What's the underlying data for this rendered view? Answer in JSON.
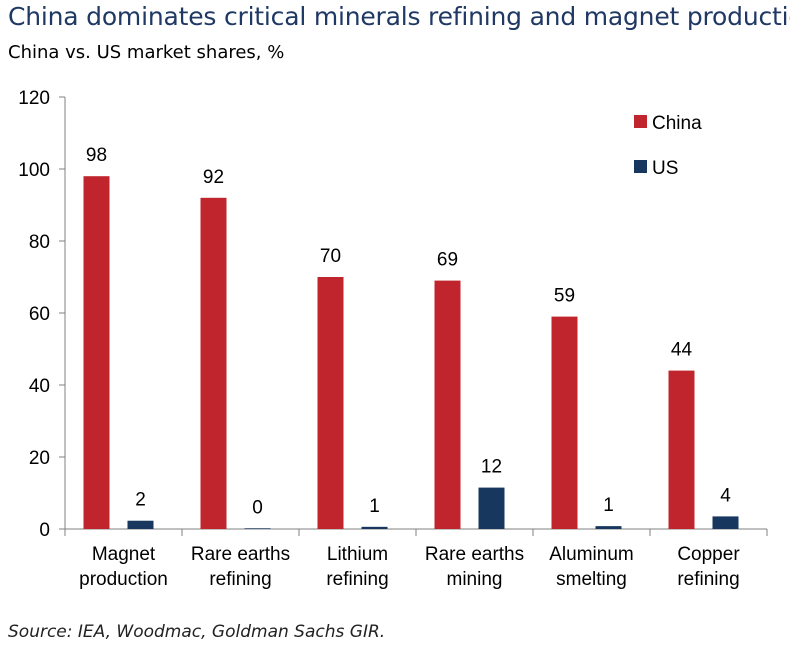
{
  "chart_data": {
    "type": "bar",
    "title": "China dominates critical minerals refining and magnet production",
    "subtitle": "China vs. US market shares, %",
    "source": "Source: IEA, Woodmac, Goldman Sachs GIR.",
    "categories": [
      [
        "Magnet",
        "production"
      ],
      [
        "Rare earths",
        "refining"
      ],
      [
        "Lithium",
        "refining"
      ],
      [
        "Rare earths",
        "mining"
      ],
      [
        "Aluminum",
        "smelting"
      ],
      [
        "Copper",
        "refining"
      ]
    ],
    "series": [
      {
        "name": "China",
        "color": "#c0242c",
        "values": [
          98,
          92,
          70,
          69,
          59,
          44
        ]
      },
      {
        "name": "US",
        "color": "#17375e",
        "values": [
          2.3,
          0.2,
          0.6,
          11.5,
          0.8,
          3.5
        ],
        "labels": [
          "2",
          "0",
          "1",
          "12",
          "1",
          "4"
        ]
      }
    ],
    "data_labels_china": [
      "98",
      "92",
      "70",
      "69",
      "59",
      "44"
    ],
    "ylim": [
      0,
      120
    ],
    "yticks": [
      "0",
      "20",
      "40",
      "60",
      "80",
      "100",
      "120"
    ],
    "ytick_values": [
      0,
      20,
      40,
      60,
      80,
      100,
      120
    ],
    "legend_position": "top-right",
    "xlabel": "",
    "ylabel": ""
  }
}
